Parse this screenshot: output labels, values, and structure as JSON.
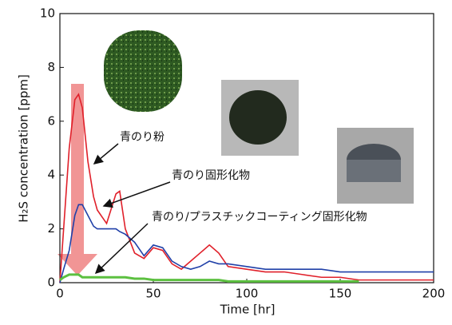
{
  "chart_data": {
    "type": "line",
    "xlabel": "Time  [hr]",
    "ylabel": "H₂S concentration  [ppm]",
    "x": [
      0,
      2,
      5,
      8,
      10,
      12,
      15,
      18,
      20,
      25,
      30,
      32,
      35,
      40,
      45,
      50,
      55,
      60,
      65,
      70,
      75,
      80,
      85,
      90,
      100,
      110,
      120,
      130,
      140,
      150,
      160,
      170,
      180,
      190,
      200
    ],
    "series": [
      {
        "color": "#e0202a",
        "values": [
          0,
          2,
          5,
          6.8,
          7,
          6.5,
          4.5,
          3.2,
          2.7,
          2.2,
          3.3,
          3.4,
          2,
          1.1,
          0.9,
          1.3,
          1.2,
          0.7,
          0.5,
          0.8,
          1.1,
          1.4,
          1.1,
          0.6,
          0.5,
          0.4,
          0.4,
          0.3,
          0.2,
          0.2,
          0.1,
          0.1,
          0.1,
          0.1,
          0.1
        ]
      },
      {
        "color": "#2040a8",
        "values": [
          0,
          0.5,
          1.2,
          2.5,
          2.9,
          2.9,
          2.5,
          2.1,
          2,
          2,
          2,
          1.9,
          1.8,
          1.5,
          1,
          1.4,
          1.3,
          0.8,
          0.6,
          0.5,
          0.6,
          0.8,
          0.7,
          0.7,
          0.6,
          0.5,
          0.5,
          0.5,
          0.5,
          0.4,
          0.4,
          0.4,
          0.4,
          0.4,
          0.4
        ]
      },
      {
        "color": "#5cc040",
        "values": [
          0.1,
          0.2,
          0.3,
          0.3,
          0.3,
          0.2,
          0.2,
          0.2,
          0.2,
          0.2,
          0.2,
          0.2,
          0.2,
          0.15,
          0.15,
          0.1,
          0.1,
          0.1,
          0.1,
          0.1,
          0.1,
          0.1,
          0.1,
          0.05,
          0.05,
          0.05,
          0.05,
          0.05,
          0.05,
          0.05,
          0.05,
          null,
          null,
          null,
          null
        ]
      }
    ],
    "annotations": [
      "青のり粉",
      "青のり固形化物",
      "青のり/プラスチックコーティング固形化物"
    ],
    "xlim": [
      0,
      200
    ],
    "xticks": [
      0,
      50,
      100,
      150,
      200
    ],
    "ylim": [
      0,
      10
    ],
    "yticks": [
      0,
      2,
      4,
      6,
      8,
      10
    ]
  }
}
